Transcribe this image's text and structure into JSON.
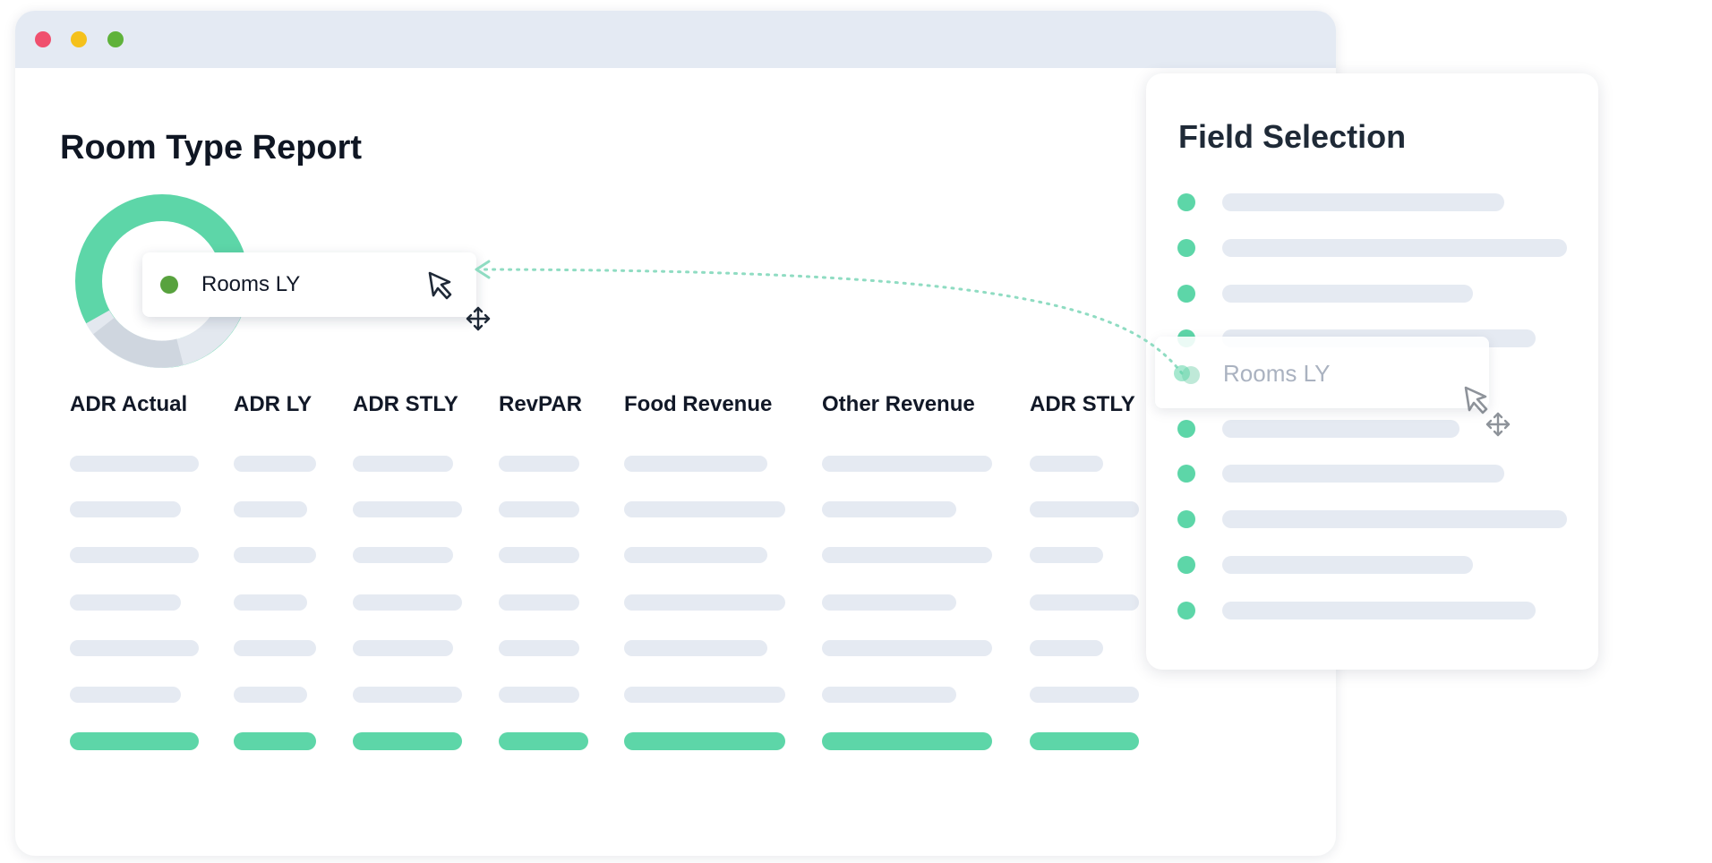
{
  "report": {
    "title": "Room Type Report",
    "columns": [
      "ADR Actual",
      "ADR LY",
      "ADR STLY",
      "RevPAR",
      "Food Revenue",
      "Other Revenue",
      "ADR STLY"
    ]
  },
  "drag_chip": {
    "label": "Rooms LY"
  },
  "field_selection": {
    "title": "Field Selection",
    "ghost_label": "Rooms LY"
  },
  "colors": {
    "accent_green": "#5dd6a8",
    "chip_dot": "#58a23e",
    "placeholder": "#e5eaf2",
    "titlebar": "#e4eaf3",
    "close": "#f0506e",
    "minimize": "#f5c11b",
    "maximize": "#5fb23a"
  },
  "icons": {
    "cursor": "cursor-arrow-icon",
    "move": "move-arrows-icon"
  }
}
